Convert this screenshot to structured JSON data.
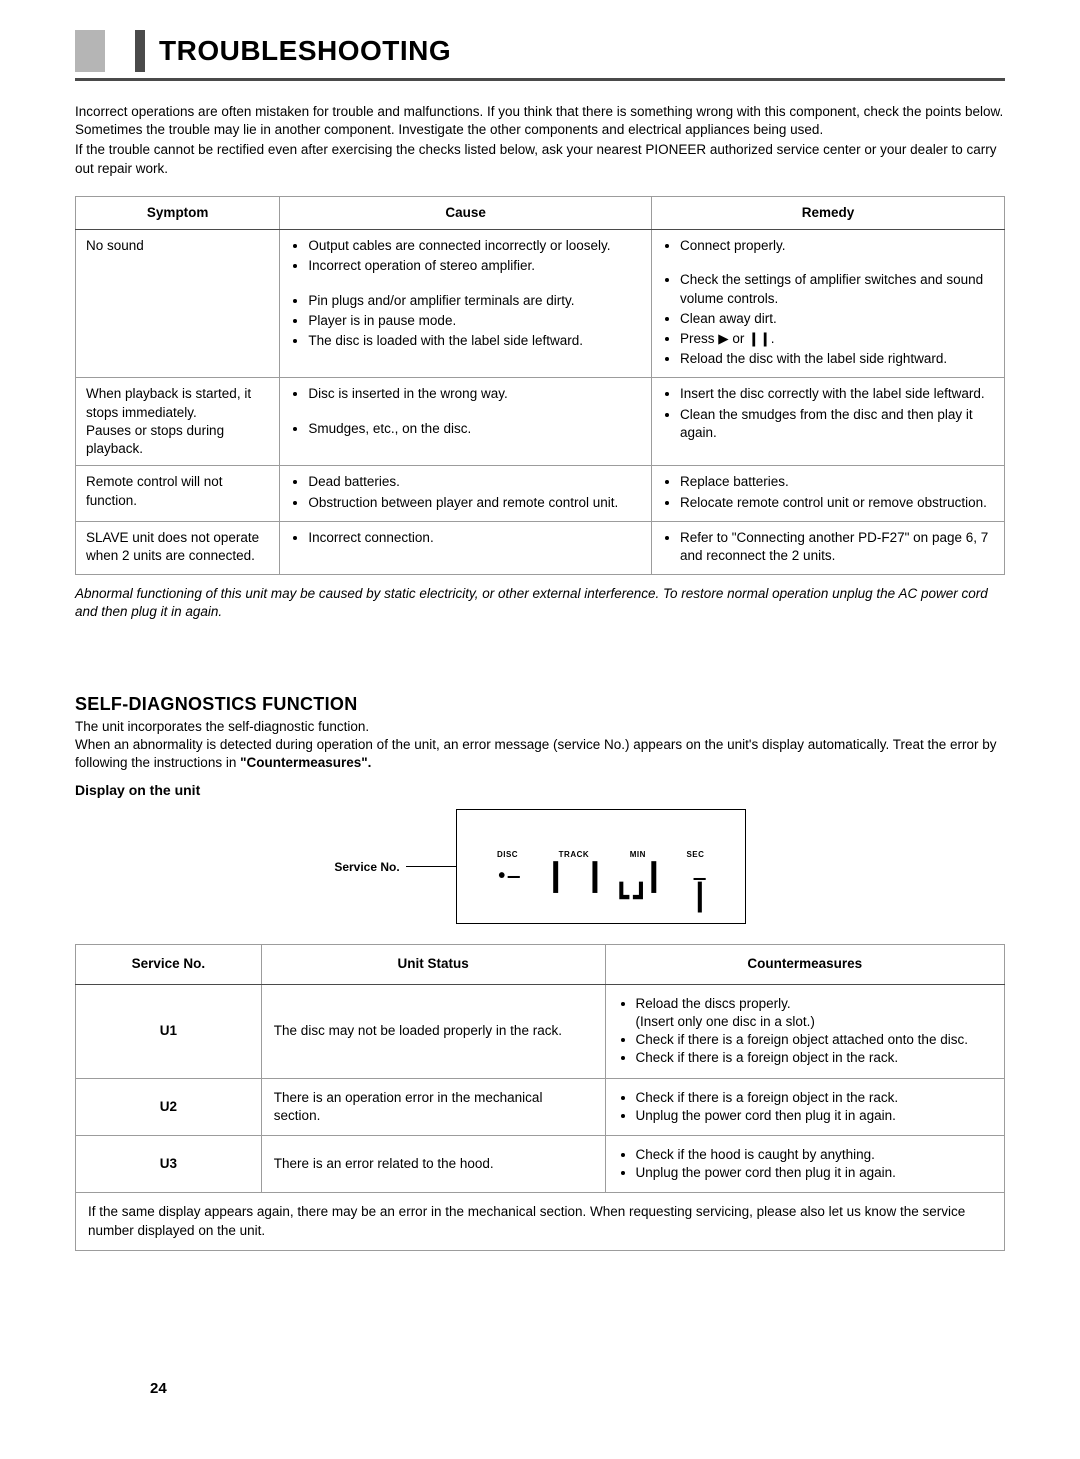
{
  "title": "TROUBLESHOOTING",
  "intro": [
    "Incorrect operations are often mistaken for trouble and malfunctions. If you think that there is something wrong with this component, check the points below. Sometimes the trouble may lie in another component. Investigate the other components and electrical appliances being used.",
    "If the trouble cannot be rectified even after exercising the checks listed below, ask your nearest PIONEER authorized service center or your dealer to carry out repair work."
  ],
  "table1": {
    "headers": [
      "Symptom",
      "Cause",
      "Remedy"
    ],
    "rows": [
      {
        "symptom": "No sound",
        "cause": [
          "Output cables are connected incorrectly or loosely.",
          "Incorrect operation of stereo amplifier.",
          "",
          "Pin plugs and/or amplifier terminals are dirty.",
          "Player is in pause mode.",
          "The disc is loaded with the label side leftward."
        ],
        "remedy": [
          "Connect properly.",
          "",
          "Check the settings of amplifier switches and sound volume controls.",
          "Clean away dirt.",
          "Press ▶ or ❙❙.",
          "Reload the disc with the label side rightward."
        ]
      },
      {
        "symptom": "When playback is started, it stops immediately.\nPauses or stops during playback.",
        "cause": [
          "Disc is inserted in the wrong way.",
          "",
          "Smudges, etc., on the disc."
        ],
        "remedy": [
          "Insert the disc correctly with the label side leftward.",
          "Clean the smudges from the disc and then play it again."
        ]
      },
      {
        "symptom": "Remote control will not function.",
        "cause": [
          "Dead batteries.",
          "Obstruction between player and remote control unit."
        ],
        "remedy": [
          "Replace batteries.",
          "Relocate remote control unit or remove obstruction."
        ]
      },
      {
        "symptom": "SLAVE unit does not operate when 2 units are connected.",
        "cause": [
          "Incorrect connection."
        ],
        "remedy": [
          "Refer to \"Connecting another PD-F27\" on page 6, 7 and reconnect the 2 units."
        ]
      }
    ]
  },
  "footnote": "Abnormal functioning of this unit may be caused by static electricity, or other external interference. To restore normal operation unplug the AC power cord and then plug it in again.",
  "section2": {
    "heading": "SELF-DIAGNOSTICS FUNCTION",
    "p1": "The unit incorporates the self-diagnostic function.",
    "p2a": "When an abnormality is detected during operation of the unit, an error message (service No.) appears on the unit's display automatically. Treat the error by following the instructions in ",
    "p2b": "\"Countermeasures\".",
    "subhead": "Display on the unit",
    "display_label": "Service No.",
    "disp_headers": [
      "DISC",
      "TRACK",
      "MIN",
      "SEC"
    ],
    "table2": {
      "headers": [
        "Service No.",
        "Unit Status",
        "Countermeasures"
      ],
      "rows": [
        {
          "sn": "U1",
          "status": "The disc may not be loaded properly in the rack.",
          "measures": [
            "Reload the discs properly.\n(Insert only one disc in a slot.)",
            "Check if there is a foreign object attached onto the disc.",
            "Check if there is a foreign object in the rack."
          ]
        },
        {
          "sn": "U2",
          "status": "There is an operation error in the mechanical section.",
          "measures": [
            "Check if there is a foreign object in the rack.",
            "Unplug the power cord then plug it in again."
          ]
        },
        {
          "sn": "U3",
          "status": "There is an error related to the hood.",
          "measures": [
            "Check if the hood is caught by anything.",
            "Unplug the power cord then plug it in again."
          ]
        }
      ],
      "footer": "If the same display appears again, there may be an error in the mechanical section. When requesting servicing, please also let us know the service number displayed on the unit."
    }
  },
  "page_number": "24"
}
